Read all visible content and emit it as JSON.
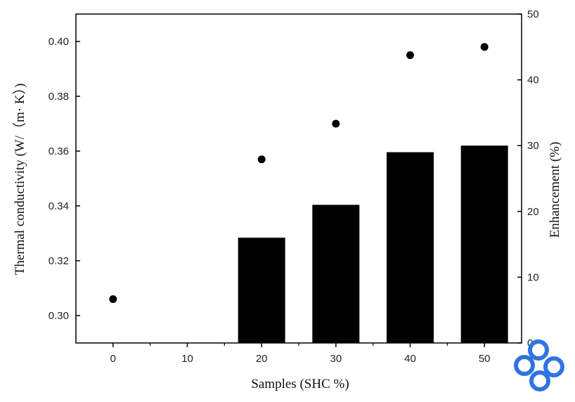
{
  "chart_data": {
    "type": "bar",
    "xlabel": "Samples (SHC %)",
    "ylabel": "Thermal conductivity (W/（m· K）)",
    "y2label": "Enhancement (%)",
    "categories": [
      "0",
      "10",
      "20",
      "30",
      "40",
      "50"
    ],
    "x_ticks": [
      "0",
      "10",
      "20",
      "30",
      "40",
      "50"
    ],
    "ylim": [
      0.29,
      0.41
    ],
    "y_ticks": [
      "0.30",
      "0.32",
      "0.34",
      "0.36",
      "0.38",
      "0.40"
    ],
    "y2lim": [
      0,
      50
    ],
    "y2_ticks": [
      "0",
      "10",
      "20",
      "30",
      "40",
      "50"
    ],
    "series": [
      {
        "type": "bar",
        "axis": "right",
        "values": [
          null,
          null,
          16,
          21,
          29,
          30
        ]
      },
      {
        "type": "scatter",
        "axis": "left",
        "values": [
          0.306,
          null,
          0.357,
          0.37,
          0.395,
          0.398
        ]
      }
    ],
    "grid": false,
    "legend": "none",
    "colors": {
      "bars": "#000000",
      "points": "#000000",
      "axis": "#000000"
    }
  },
  "logo": {
    "name": "watermark-logo",
    "color": "#2f74e0"
  }
}
